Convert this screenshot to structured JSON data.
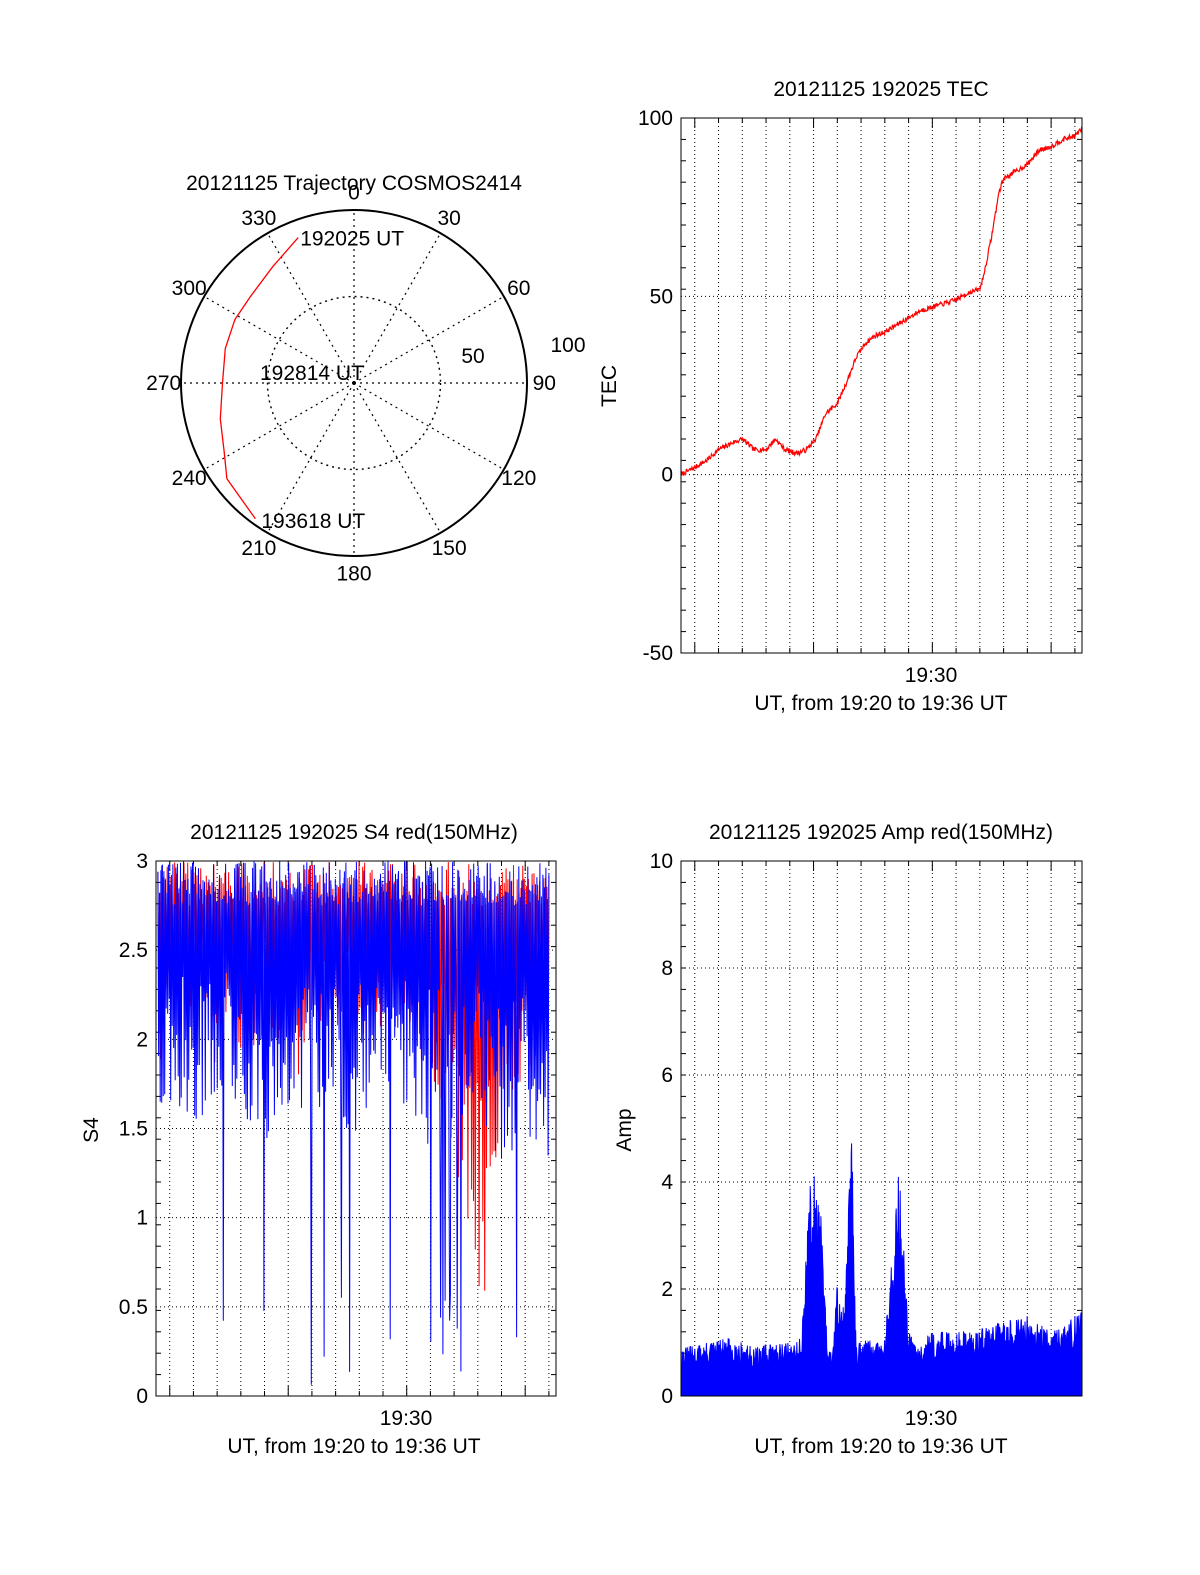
{
  "chart_data": [
    {
      "type": "polar",
      "title": "20121125 Trajectory COSMOS2414",
      "angle_labels": [
        "0",
        "30",
        "60",
        "90",
        "120",
        "150",
        "180",
        "210",
        "240",
        "270",
        "300",
        "330"
      ],
      "radial_tick_labels": [
        "50",
        "100"
      ],
      "radial_range": [
        0,
        100
      ],
      "angle_zero": "top",
      "angle_direction": "clockwise",
      "grid": true,
      "trajectory": {
        "color": "#ff0000",
        "azimuth_deg": [
          339,
          325,
          310,
          298,
          285,
          270,
          255,
          242,
          233,
          216
        ],
        "radius": [
          90,
          82,
          78,
          78,
          77,
          76,
          80,
          85,
          92,
          97
        ]
      },
      "annotations": [
        {
          "text": "192025 UT",
          "azimuth_deg": 339,
          "radius": 90
        },
        {
          "text": "192814 UT",
          "azimuth_deg": 0,
          "radius": 0
        },
        {
          "text": "193618 UT",
          "azimuth_deg": 216,
          "radius": 97
        }
      ]
    },
    {
      "type": "line",
      "title": "20121125 192025 TEC",
      "ylabel": "TEC",
      "xlabel": "UT, from 19:20 to 19:36 UT",
      "xlim_minutes": [
        19.42,
        36.3
      ],
      "xtick_minute": 30,
      "xtick_label": "19:30",
      "ylim": [
        -50,
        100
      ],
      "yticks": [
        "-50",
        "0",
        "50",
        "100"
      ],
      "grid": true,
      "series": [
        {
          "color": "#ff0000",
          "x_minutes": [
            19.42,
            20.0,
            20.5,
            21.0,
            21.6,
            22.0,
            22.5,
            23.0,
            23.4,
            23.8,
            24.3,
            24.7,
            25.1,
            25.5,
            26.0,
            26.4,
            26.8,
            27.2,
            27.6,
            28.0,
            28.5,
            29.0,
            29.5,
            30.0,
            30.5,
            31.0,
            31.5,
            32.0,
            32.2,
            32.5,
            32.8,
            33.0,
            33.5,
            34.0,
            34.5,
            35.0,
            35.5,
            36.0,
            36.3
          ],
          "y": [
            0,
            2,
            4,
            7,
            9,
            10,
            7,
            7,
            10,
            7,
            6,
            7,
            10,
            17,
            20,
            26,
            33,
            37,
            39,
            40,
            42,
            44,
            46,
            47,
            48,
            49,
            51,
            52,
            57,
            67,
            79,
            83,
            85,
            87,
            91,
            92,
            94,
            95,
            97
          ]
        }
      ]
    },
    {
      "type": "line",
      "title": "20121125 192025 S4 red(150MHz)",
      "ylabel": "S4",
      "xlabel": "UT, from 19:20 to 19:36 UT",
      "xlim_minutes": [
        19.42,
        36.3
      ],
      "xtick_minute": 30,
      "xtick_label": "19:30",
      "ylim": [
        0,
        3
      ],
      "yticks": [
        "0",
        "0.5",
        "1",
        "1.5",
        "2",
        "2.5",
        "3"
      ],
      "grid": true,
      "series": [
        {
          "color": "#ff0000",
          "x_minutes": [
            19.5,
            20.2,
            21.0,
            22.0,
            23.0,
            24.0,
            25.0,
            26.0,
            27.0,
            28.0,
            29.0,
            30.0,
            31.0,
            32.0,
            32.5,
            33.0,
            33.5,
            34.0,
            35.0,
            36.0
          ],
          "upper": [
            3,
            3,
            3,
            3,
            3,
            3,
            3,
            3,
            3,
            3,
            3,
            3,
            3,
            3,
            3,
            3,
            3,
            3,
            3,
            3
          ],
          "lower": [
            1.8,
            2.0,
            2.1,
            1.8,
            1.9,
            2.0,
            1.7,
            1.9,
            2.1,
            1.8,
            1.9,
            2.0,
            1.7,
            1.2,
            0.9,
            0.5,
            0.6,
            1.5,
            1.8,
            2.0
          ]
        },
        {
          "color": "#0000ff",
          "x_minutes": [
            19.5,
            20.2,
            21.0,
            22.0,
            23.0,
            24.0,
            25.0,
            26.0,
            27.0,
            28.0,
            29.0,
            30.0,
            31.0,
            32.0,
            33.0,
            34.0,
            35.0,
            36.0
          ],
          "upper": [
            3,
            3,
            3,
            3,
            3,
            3,
            3,
            3,
            3,
            3,
            3,
            3,
            3,
            3,
            3,
            3,
            3,
            3
          ],
          "lower": [
            1.4,
            1.6,
            1.5,
            1.7,
            1.6,
            1.4,
            1.5,
            1.6,
            1.4,
            1.5,
            1.6,
            1.5,
            1.4,
            1.5,
            1.6,
            1.3,
            1.4,
            1.1
          ]
        }
      ]
    },
    {
      "type": "area",
      "title": "20121125 192025 Amp red(150MHz)",
      "ylabel": "Amp",
      "xlabel": "UT, from 19:20 to 19:36 UT",
      "xlim_minutes": [
        19.42,
        36.3
      ],
      "xtick_minute": 30,
      "xtick_label": "19:30",
      "ylim": [
        0,
        10
      ],
      "yticks": [
        "0",
        "2",
        "4",
        "6",
        "8",
        "10"
      ],
      "grid": true,
      "series": [
        {
          "color": "#0000ff",
          "x_minutes": [
            19.42,
            20.5,
            21.5,
            22.5,
            23.5,
            24.5,
            24.8,
            25.0,
            25.3,
            25.6,
            25.8,
            26.0,
            26.3,
            26.6,
            26.8,
            27.0,
            27.2,
            27.6,
            28.0,
            28.6,
            29.0,
            29.2,
            29.4,
            30.0,
            31.0,
            32.0,
            33.0,
            34.0,
            35.0,
            36.3
          ],
          "upper": [
            0.9,
            1.0,
            1.1,
            0.9,
            1.0,
            1.1,
            3.8,
            4.3,
            3.5,
            0.8,
            0.9,
            2.2,
            1.6,
            5.2,
            1.0,
            1.0,
            1.1,
            1.0,
            1.1,
            4.3,
            1.2,
            1.1,
            1.0,
            1.2,
            1.2,
            1.3,
            1.4,
            1.5,
            1.2,
            1.6
          ]
        }
      ]
    }
  ]
}
